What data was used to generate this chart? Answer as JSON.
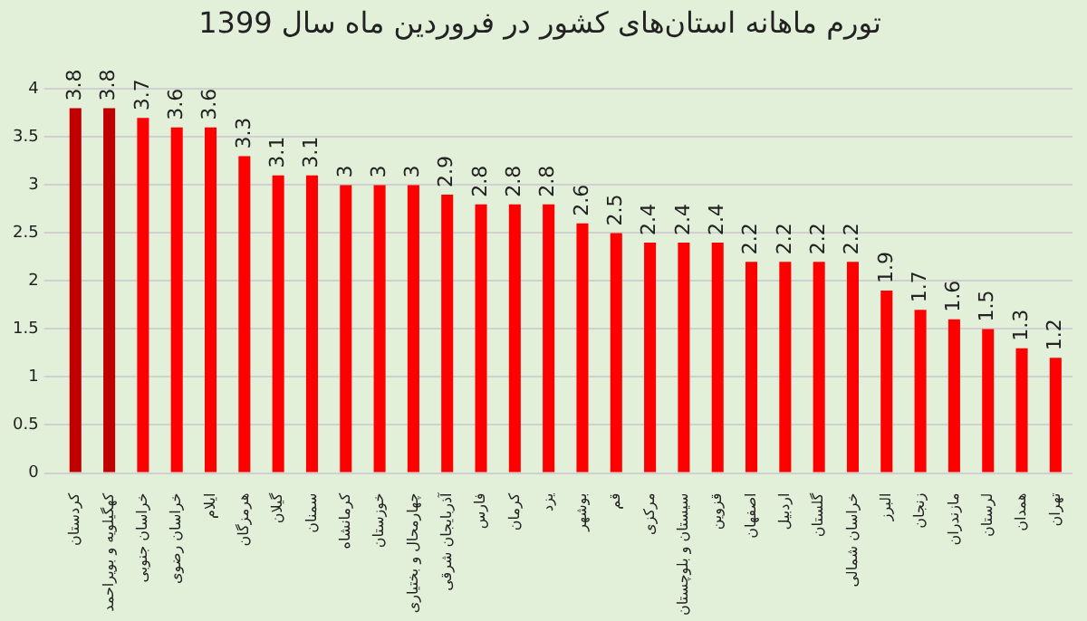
{
  "chart_data": {
    "type": "bar",
    "title": "تورم ماهانه استان‌های کشور در فروردین ماه سال 1399",
    "categories": [
      "کردستان",
      "کهگیلویه و بویراحمد",
      "خراسان جنوبی",
      "خراسان رضوی",
      "ایلام",
      "هرمزگان",
      "گیلان",
      "سمنان",
      "کرمانشاه",
      "خوزستان",
      "چهارمحال و بختیاری",
      "آذربایجان شرقی",
      "فارس",
      "کرمان",
      "یزد",
      "بوشهر",
      "قم",
      "مرکزی",
      "سیستان و بلوچستان",
      "قزوین",
      "اصفهان",
      "اردبیل",
      "گلستان",
      "خراسان شمالی",
      "البرز",
      "زنجان",
      "مازندران",
      "لرستان",
      "همدان",
      "تهران"
    ],
    "values": [
      3.8,
      3.8,
      3.7,
      3.6,
      3.6,
      3.3,
      3.1,
      3.1,
      3,
      3,
      3,
      2.9,
      2.8,
      2.8,
      2.8,
      2.6,
      2.5,
      2.4,
      2.4,
      2.4,
      2.2,
      2.2,
      2.2,
      2.2,
      1.9,
      1.7,
      1.6,
      1.5,
      1.3,
      1.2
    ],
    "colors": [
      "#c00000",
      "#c00000",
      "#ff0000",
      "#ff0000",
      "#ff0000",
      "#ff0000",
      "#ff0000",
      "#ff0000",
      "#ff0000",
      "#ff0000",
      "#ff0000",
      "#ff0000",
      "#ff0000",
      "#ff0000",
      "#ff0000",
      "#ff0000",
      "#ff0000",
      "#ff0000",
      "#ff0000",
      "#ff0000",
      "#ff0000",
      "#ff0000",
      "#ff0000",
      "#ff0000",
      "#ff0000",
      "#ff0000",
      "#ff0000",
      "#ff0000",
      "#ff0000",
      "#ff0000"
    ],
    "ylim": [
      0,
      4
    ],
    "yticks": [
      0,
      0.5,
      1,
      1.5,
      2,
      2.5,
      3,
      3.5,
      4
    ],
    "grid": "y",
    "data_labels": true,
    "legend": false
  }
}
